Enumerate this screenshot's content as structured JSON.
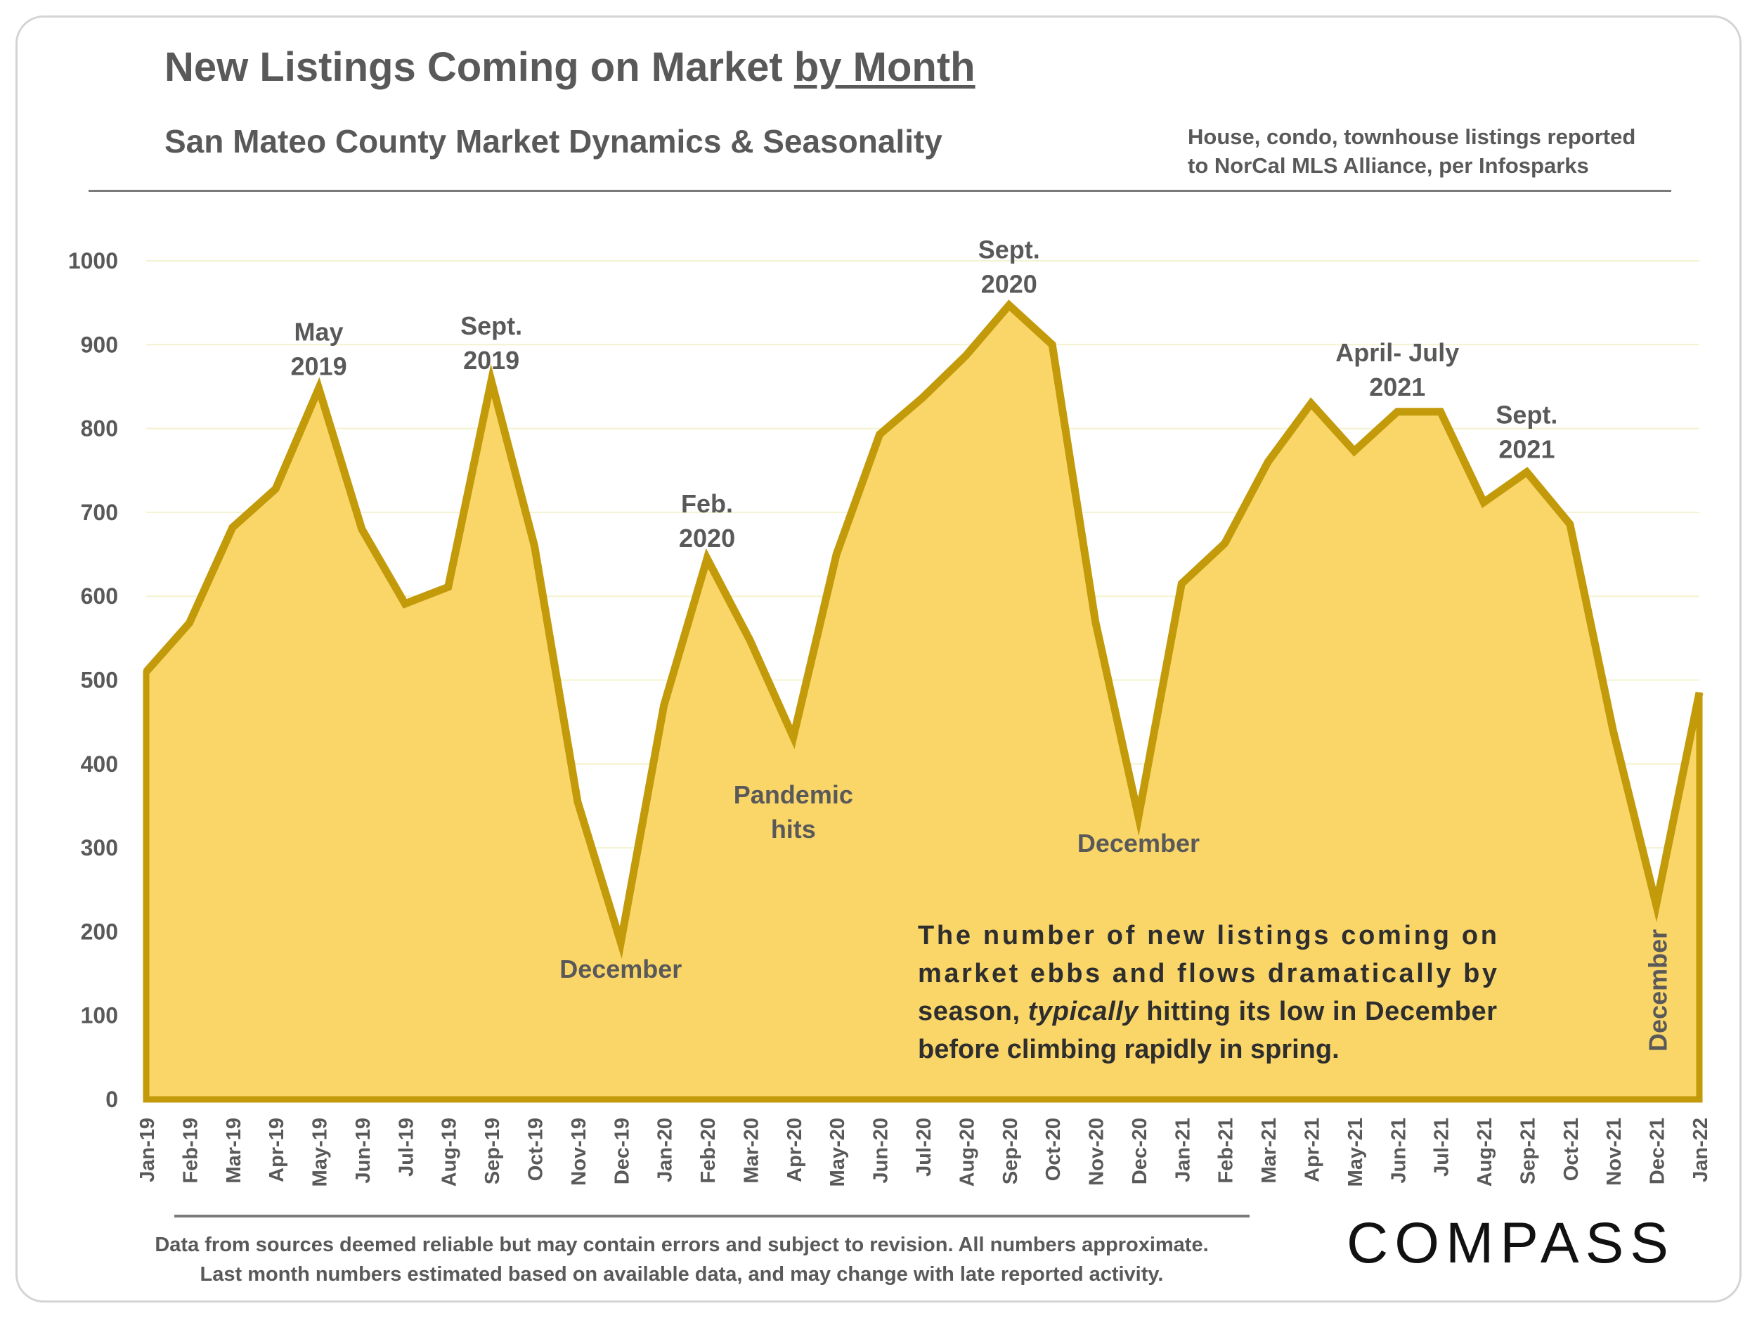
{
  "header": {
    "title_main": "New Listings Coming on Market ",
    "title_underlined": "by Month",
    "subtitle": "San Mateo County Market Dynamics & Seasonality",
    "note_line1": "House, condo, townhouse listings reported",
    "note_line2": "to NorCal MLS Alliance, per Infosparks"
  },
  "chart_data": {
    "type": "area",
    "title": "New Listings Coming on Market by Month",
    "subtitle": "San Mateo County Market Dynamics & Seasonality",
    "xlabel": "",
    "ylabel": "",
    "ylim": [
      0,
      1000
    ],
    "yticks": [
      0,
      100,
      200,
      300,
      400,
      500,
      600,
      700,
      800,
      900,
      1000
    ],
    "grid": true,
    "legend": "none",
    "categories": [
      "Jan-19",
      "Feb-19",
      "Mar-19",
      "Apr-19",
      "May-19",
      "Jun-19",
      "Jul-19",
      "Aug-19",
      "Sep-19",
      "Oct-19",
      "Nov-19",
      "Dec-19",
      "Jan-20",
      "Feb-20",
      "Mar-20",
      "Apr-20",
      "May-20",
      "Jun-20",
      "Jul-20",
      "Aug-20",
      "Sep-20",
      "Oct-20",
      "Nov-20",
      "Dec-20",
      "Jan-21",
      "Feb-21",
      "Mar-21",
      "Apr-21",
      "May-21",
      "Jun-21",
      "Jul-21",
      "Aug-21",
      "Sep-21",
      "Oct-21",
      "Nov-21",
      "Dec-21",
      "Jan-22"
    ],
    "values": [
      510,
      568,
      682,
      728,
      848,
      680,
      591,
      611,
      857,
      660,
      355,
      187,
      470,
      645,
      547,
      432,
      650,
      793,
      837,
      887,
      947,
      900,
      570,
      337,
      615,
      663,
      760,
      830,
      773,
      820,
      820,
      712,
      748,
      686,
      440,
      232,
      485
    ],
    "colors": {
      "fill": "#fad669",
      "line": "#c39a0a",
      "grid": "#f3f3cf",
      "text": "#595959",
      "annotation": "#595959"
    },
    "annotations": [
      {
        "lines": [
          "May",
          "2019"
        ],
        "at": "May-19",
        "value": 905
      },
      {
        "lines": [
          "Sept.",
          "2019"
        ],
        "at": "Sep-19",
        "value": 912
      },
      {
        "lines": [
          "Feb.",
          "2020"
        ],
        "at": "Feb-20",
        "value": 700
      },
      {
        "lines": [
          "Pandemic",
          "hits"
        ],
        "at": "Apr-20",
        "value": 353
      },
      {
        "lines": [
          "December"
        ],
        "at": "Dec-19",
        "value": 145
      },
      {
        "lines": [
          "Sept.",
          "2020"
        ],
        "at": "Sep-20",
        "value": 1003
      },
      {
        "lines": [
          "December"
        ],
        "at": "Dec-20",
        "value": 295
      },
      {
        "lines": [
          "April- July",
          "2021"
        ],
        "at": "Jun-21",
        "value": 880
      },
      {
        "lines": [
          "Sept.",
          "2021"
        ],
        "at": "Sep-21",
        "value": 806
      },
      {
        "lines": [
          "December"
        ],
        "at": "Dec-21",
        "value": 130,
        "rotate": true
      }
    ],
    "callout_lines": [
      [
        "The number of new listings coming on"
      ],
      [
        "market ebbs and flows dramatically by"
      ],
      [
        "season, ",
        "typically",
        " hitting its low in December"
      ],
      [
        "before climbing rapidly in spring."
      ]
    ]
  },
  "footer": {
    "disclaimer_line1": "Data from sources deemed reliable but may contain errors and subject to revision. All numbers approximate.",
    "disclaimer_line2": "Last month numbers estimated based on available data, and may change with late reported activity.",
    "logo": "COMPASS"
  }
}
